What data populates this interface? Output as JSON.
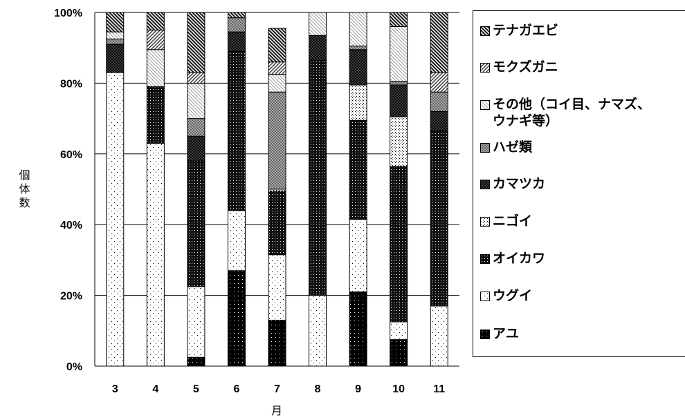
{
  "chart_data": {
    "type": "bar",
    "stacked": "percent",
    "xlabel": "月",
    "ylabel": "個体数",
    "ylim": [
      0,
      100
    ],
    "yticks": [
      "0%",
      "20%",
      "40%",
      "60%",
      "80%",
      "100%"
    ],
    "grid": true,
    "legend_position": "right",
    "categories": [
      "3",
      "4",
      "5",
      "6",
      "7",
      "8",
      "9",
      "10",
      "11"
    ],
    "series": [
      {
        "name": "アユ",
        "values": [
          0,
          0,
          2.5,
          27,
          13,
          0,
          21,
          7.5,
          0
        ],
        "pattern": "solid-dark"
      },
      {
        "name": "ウグイ",
        "values": [
          83,
          63,
          20,
          17,
          18.5,
          20,
          20.5,
          5,
          17
        ],
        "pattern": "sparse-dots"
      },
      {
        "name": "オイカワ",
        "values": [
          0,
          15.5,
          35.5,
          45,
          18,
          66.5,
          28,
          44,
          49.5
        ],
        "pattern": "dense-dark"
      },
      {
        "name": "ニゴイ",
        "values": [
          0,
          0,
          0,
          0,
          0.5,
          0,
          10,
          14,
          0
        ],
        "pattern": "dots"
      },
      {
        "name": "カマツカ",
        "values": [
          8,
          0.5,
          7,
          5.5,
          0,
          7,
          10,
          9,
          5.5
        ],
        "pattern": "crosshatch-dark"
      },
      {
        "name": "ハゼ類",
        "values": [
          1.5,
          0,
          5,
          4,
          27.5,
          0,
          1,
          1,
          5.5
        ],
        "pattern": "crosshatch-light"
      },
      {
        "name": "その他（コイ目、ナマズ、ウナギ等）",
        "values": [
          2,
          10.5,
          10,
          0,
          5,
          6.5,
          9.5,
          15.5,
          0
        ],
        "pattern": "diag-light"
      },
      {
        "name": "モクズガニ",
        "values": [
          0,
          5.5,
          3,
          0,
          3.5,
          0,
          0,
          0,
          5.5
        ],
        "pattern": "diag-medium"
      },
      {
        "name": "テナガエビ",
        "values": [
          5.5,
          5,
          17,
          1.5,
          9.5,
          0,
          0,
          4,
          17
        ],
        "pattern": "diag-dark"
      }
    ]
  },
  "legend": {
    "items": [
      {
        "label": "テナガエビ",
        "pattern": "diag-dark"
      },
      {
        "label": "モクズガニ",
        "pattern": "diag-medium"
      },
      {
        "label": "その他（コイ目、ナマズ、",
        "label2": "ウナギ等）",
        "pattern": "diag-light"
      },
      {
        "label": "ハゼ類",
        "pattern": "crosshatch-light"
      },
      {
        "label": "カマツカ",
        "pattern": "crosshatch-dark"
      },
      {
        "label": "ニゴイ",
        "pattern": "dots"
      },
      {
        "label": "オイカワ",
        "pattern": "dense-dark"
      },
      {
        "label": "ウグイ",
        "pattern": "sparse-dots"
      },
      {
        "label": "アユ",
        "pattern": "solid-dark"
      }
    ]
  }
}
